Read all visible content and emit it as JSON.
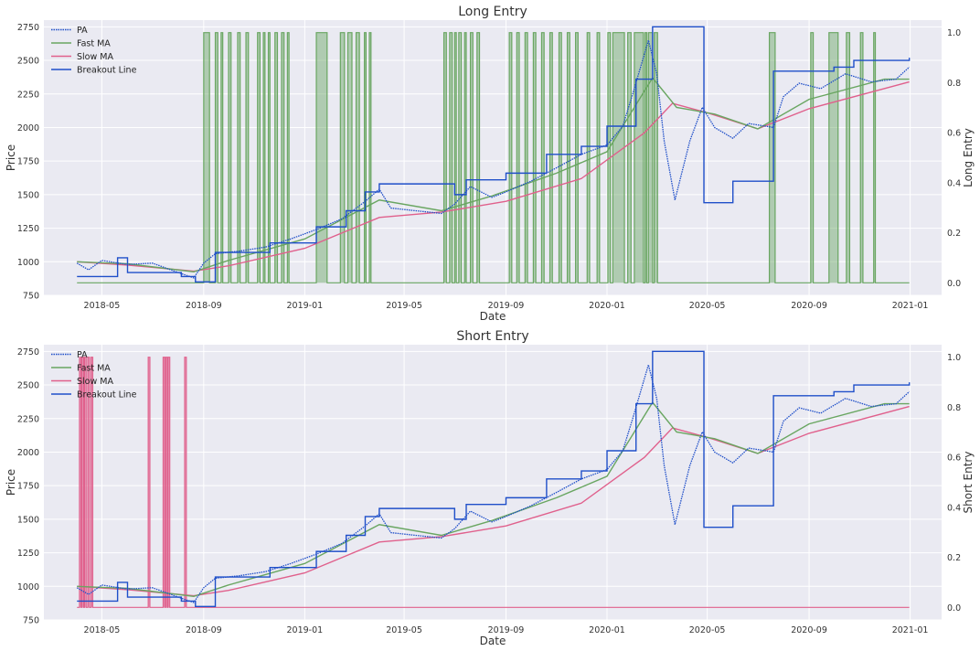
{
  "colors": {
    "background": "#eaeaf2",
    "grid": "#ffffff",
    "price": "#1f4fc9",
    "fast_ma": "#69a661",
    "slow_ma": "#e0608c",
    "breakout": "#1f4fc9",
    "long_fill": "#69a661",
    "short_fill": "#e0608c"
  },
  "chart_data": [
    {
      "type": "line",
      "title": "Long Entry",
      "xlabel": "Date",
      "ylabel": "Price",
      "y2label": "Long Entry",
      "xlim": [
        "2018-02-20",
        "2021-02-08"
      ],
      "ylim": [
        750,
        2800
      ],
      "y2lim": [
        -0.05,
        1.05
      ],
      "x_ticks": [
        "2018-05",
        "2018-09",
        "2019-01",
        "2019-05",
        "2019-09",
        "2020-01",
        "2020-05",
        "2020-09",
        "2021-01"
      ],
      "y_ticks": [
        750,
        1000,
        1250,
        1500,
        1750,
        2000,
        2250,
        2500,
        2750
      ],
      "y2_ticks": [
        0.0,
        0.2,
        0.4,
        0.6,
        0.8,
        1.0
      ],
      "y2_tick_labels": [
        "0.0",
        "0.2",
        "0.4",
        "0.6",
        "0.8",
        "1.0"
      ],
      "grid": true,
      "legend_position": "top-left",
      "series": [
        {
          "name": "PA",
          "style": "dotted",
          "points": [
            [
              "2018-04-01",
              990
            ],
            [
              "2018-04-15",
              940
            ],
            [
              "2018-05-01",
              1010
            ],
            [
              "2018-06-01",
              980
            ],
            [
              "2018-07-01",
              990
            ],
            [
              "2018-08-01",
              920
            ],
            [
              "2018-08-20",
              880
            ],
            [
              "2018-09-01",
              990
            ],
            [
              "2018-09-15",
              1060
            ],
            [
              "2018-10-15",
              1080
            ],
            [
              "2018-11-15",
              1110
            ],
            [
              "2018-12-15",
              1170
            ],
            [
              "2019-01-15",
              1240
            ],
            [
              "2019-02-15",
              1320
            ],
            [
              "2019-03-15",
              1450
            ],
            [
              "2019-04-01",
              1540
            ],
            [
              "2019-04-15",
              1400
            ],
            [
              "2019-05-15",
              1380
            ],
            [
              "2019-06-15",
              1360
            ],
            [
              "2019-07-01",
              1430
            ],
            [
              "2019-07-20",
              1560
            ],
            [
              "2019-08-15",
              1480
            ],
            [
              "2019-09-01",
              1520
            ],
            [
              "2019-10-01",
              1600
            ],
            [
              "2019-11-01",
              1700
            ],
            [
              "2019-12-01",
              1800
            ],
            [
              "2020-01-01",
              1870
            ],
            [
              "2020-01-20",
              2010
            ],
            [
              "2020-02-01",
              2250
            ],
            [
              "2020-02-20",
              2650
            ],
            [
              "2020-03-01",
              2400
            ],
            [
              "2020-03-10",
              1900
            ],
            [
              "2020-03-23",
              1460
            ],
            [
              "2020-04-10",
              1900
            ],
            [
              "2020-04-25",
              2150
            ],
            [
              "2020-05-10",
              2000
            ],
            [
              "2020-06-01",
              1920
            ],
            [
              "2020-06-20",
              2030
            ],
            [
              "2020-07-20",
              2000
            ],
            [
              "2020-08-01",
              2230
            ],
            [
              "2020-08-20",
              2330
            ],
            [
              "2020-09-15",
              2290
            ],
            [
              "2020-10-15",
              2400
            ],
            [
              "2020-11-15",
              2340
            ],
            [
              "2020-12-15",
              2360
            ],
            [
              "2020-12-31",
              2450
            ]
          ]
        },
        {
          "name": "Fast MA",
          "points": [
            [
              "2018-04-01",
              1000
            ],
            [
              "2018-06-01",
              985
            ],
            [
              "2018-08-20",
              925
            ],
            [
              "2018-10-01",
              1010
            ],
            [
              "2019-01-01",
              1170
            ],
            [
              "2019-04-01",
              1460
            ],
            [
              "2019-06-15",
              1380
            ],
            [
              "2019-08-15",
              1490
            ],
            [
              "2019-11-01",
              1660
            ],
            [
              "2020-01-01",
              1820
            ],
            [
              "2020-02-25",
              2370
            ],
            [
              "2020-03-25",
              2150
            ],
            [
              "2020-05-10",
              2100
            ],
            [
              "2020-07-01",
              1990
            ],
            [
              "2020-09-01",
              2210
            ],
            [
              "2020-12-01",
              2360
            ],
            [
              "2020-12-31",
              2360
            ]
          ]
        },
        {
          "name": "Slow MA",
          "points": [
            [
              "2018-04-01",
              1000
            ],
            [
              "2018-06-01",
              975
            ],
            [
              "2018-08-20",
              930
            ],
            [
              "2018-10-01",
              970
            ],
            [
              "2019-01-01",
              1100
            ],
            [
              "2019-04-01",
              1330
            ],
            [
              "2019-06-15",
              1370
            ],
            [
              "2019-09-01",
              1450
            ],
            [
              "2019-12-01",
              1620
            ],
            [
              "2020-02-15",
              1960
            ],
            [
              "2020-03-20",
              2180
            ],
            [
              "2020-05-01",
              2110
            ],
            [
              "2020-07-01",
              1990
            ],
            [
              "2020-09-01",
              2140
            ],
            [
              "2020-12-31",
              2340
            ]
          ]
        },
        {
          "name": "Breakout Line",
          "steps": [
            [
              "2018-04-01",
              890
            ],
            [
              "2018-05-20",
              1030
            ],
            [
              "2018-06-01",
              920
            ],
            [
              "2018-08-05",
              890
            ],
            [
              "2018-08-22",
              850
            ],
            [
              "2018-09-15",
              1070
            ],
            [
              "2018-11-20",
              1140
            ],
            [
              "2019-01-15",
              1260
            ],
            [
              "2019-02-20",
              1380
            ],
            [
              "2019-03-15",
              1520
            ],
            [
              "2019-04-01",
              1580
            ],
            [
              "2019-07-01",
              1500
            ],
            [
              "2019-07-15",
              1610
            ],
            [
              "2019-09-01",
              1660
            ],
            [
              "2019-10-20",
              1800
            ],
            [
              "2019-12-01",
              1860
            ],
            [
              "2020-01-01",
              2010
            ],
            [
              "2020-02-05",
              2360
            ],
            [
              "2020-02-25",
              2750
            ],
            [
              "2020-04-27",
              1440
            ],
            [
              "2020-06-01",
              1600
            ],
            [
              "2020-07-20",
              2420
            ],
            [
              "2020-10-01",
              2450
            ],
            [
              "2020-10-25",
              2500
            ],
            [
              "2020-12-31",
              2520
            ]
          ]
        },
        {
          "name": "Long Entry",
          "axis": "y2",
          "on_intervals": [
            [
              "2018-09-01",
              "2018-09-08"
            ],
            [
              "2018-09-15",
              "2018-09-18"
            ],
            [
              "2018-09-22",
              "2018-09-24"
            ],
            [
              "2018-10-01",
              "2018-10-04"
            ],
            [
              "2018-10-12",
              "2018-10-15"
            ],
            [
              "2018-10-22",
              "2018-10-25"
            ],
            [
              "2018-11-05",
              "2018-11-08"
            ],
            [
              "2018-11-12",
              "2018-11-14"
            ],
            [
              "2018-11-18",
              "2018-11-20"
            ],
            [
              "2018-11-26",
              "2018-11-29"
            ],
            [
              "2018-12-04",
              "2018-12-07"
            ],
            [
              "2018-12-11",
              "2018-12-13"
            ],
            [
              "2019-01-15",
              "2019-01-28"
            ],
            [
              "2019-02-13",
              "2019-02-18"
            ],
            [
              "2019-02-22",
              "2019-02-27"
            ],
            [
              "2019-03-04",
              "2019-03-08"
            ],
            [
              "2019-03-14",
              "2019-03-16"
            ],
            [
              "2019-03-20",
              "2019-03-22"
            ],
            [
              "2019-06-18",
              "2019-06-21"
            ],
            [
              "2019-06-25",
              "2019-06-28"
            ],
            [
              "2019-07-01",
              "2019-07-03"
            ],
            [
              "2019-07-06",
              "2019-07-09"
            ],
            [
              "2019-07-13",
              "2019-07-15"
            ],
            [
              "2019-07-20",
              "2019-07-23"
            ],
            [
              "2019-07-28",
              "2019-07-31"
            ],
            [
              "2019-09-05",
              "2019-09-08"
            ],
            [
              "2019-09-14",
              "2019-09-17"
            ],
            [
              "2019-09-24",
              "2019-09-27"
            ],
            [
              "2019-10-04",
              "2019-10-07"
            ],
            [
              "2019-10-14",
              "2019-10-17"
            ],
            [
              "2019-10-24",
              "2019-10-27"
            ],
            [
              "2019-11-04",
              "2019-11-07"
            ],
            [
              "2019-11-14",
              "2019-11-17"
            ],
            [
              "2019-11-24",
              "2019-11-27"
            ],
            [
              "2019-12-08",
              "2019-12-11"
            ],
            [
              "2019-12-20",
              "2019-12-23"
            ],
            [
              "2020-01-02",
              "2020-01-05"
            ],
            [
              "2020-01-08",
              "2020-01-22"
            ],
            [
              "2020-01-26",
              "2020-01-30"
            ],
            [
              "2020-02-03",
              "2020-02-14"
            ],
            [
              "2020-02-16",
              "2020-02-18"
            ],
            [
              "2020-02-20",
              "2020-02-25"
            ],
            [
              "2020-02-27",
              "2020-03-02"
            ],
            [
              "2020-07-15",
              "2020-07-22"
            ],
            [
              "2020-09-03",
              "2020-09-06"
            ],
            [
              "2020-09-25",
              "2020-10-06"
            ],
            [
              "2020-10-16",
              "2020-10-20"
            ],
            [
              "2020-11-02",
              "2020-11-05"
            ],
            [
              "2020-11-18",
              "2020-11-20"
            ]
          ]
        }
      ]
    },
    {
      "type": "line",
      "title": "Short Entry",
      "xlabel": "Date",
      "ylabel": "Price",
      "y2label": "Short Entry",
      "xlim": [
        "2018-02-20",
        "2021-02-08"
      ],
      "ylim": [
        750,
        2800
      ],
      "y2lim": [
        -0.05,
        1.05
      ],
      "x_ticks": [
        "2018-05",
        "2018-09",
        "2019-01",
        "2019-05",
        "2019-09",
        "2020-01",
        "2020-05",
        "2020-09",
        "2021-01"
      ],
      "y_ticks": [
        750,
        1000,
        1250,
        1500,
        1750,
        2000,
        2250,
        2500,
        2750
      ],
      "y2_ticks": [
        0.0,
        0.2,
        0.4,
        0.6,
        0.8,
        1.0
      ],
      "y2_tick_labels": [
        "0.0",
        "0.2",
        "0.4",
        "0.6",
        "0.8",
        "1.0"
      ],
      "grid": true,
      "legend_position": "top-left",
      "series": [
        {
          "name": "PA",
          "style": "dotted",
          "same_as": "Long Entry PA"
        },
        {
          "name": "Fast MA",
          "same_as": "Long Entry Fast MA"
        },
        {
          "name": "Slow MA",
          "same_as": "Long Entry Slow MA"
        },
        {
          "name": "Breakout Line",
          "same_as": "Long Entry Breakout Line"
        },
        {
          "name": "Short Entry",
          "axis": "y2",
          "on_intervals": [
            [
              "2018-04-04",
              "2018-04-06"
            ],
            [
              "2018-04-07",
              "2018-04-09"
            ],
            [
              "2018-04-10",
              "2018-04-12"
            ],
            [
              "2018-04-14",
              "2018-04-16"
            ],
            [
              "2018-04-18",
              "2018-04-20"
            ],
            [
              "2018-06-26",
              "2018-06-28"
            ],
            [
              "2018-07-14",
              "2018-07-16"
            ],
            [
              "2018-07-17",
              "2018-07-19"
            ],
            [
              "2018-07-20",
              "2018-07-22"
            ],
            [
              "2018-08-09",
              "2018-08-11"
            ]
          ]
        }
      ]
    }
  ]
}
